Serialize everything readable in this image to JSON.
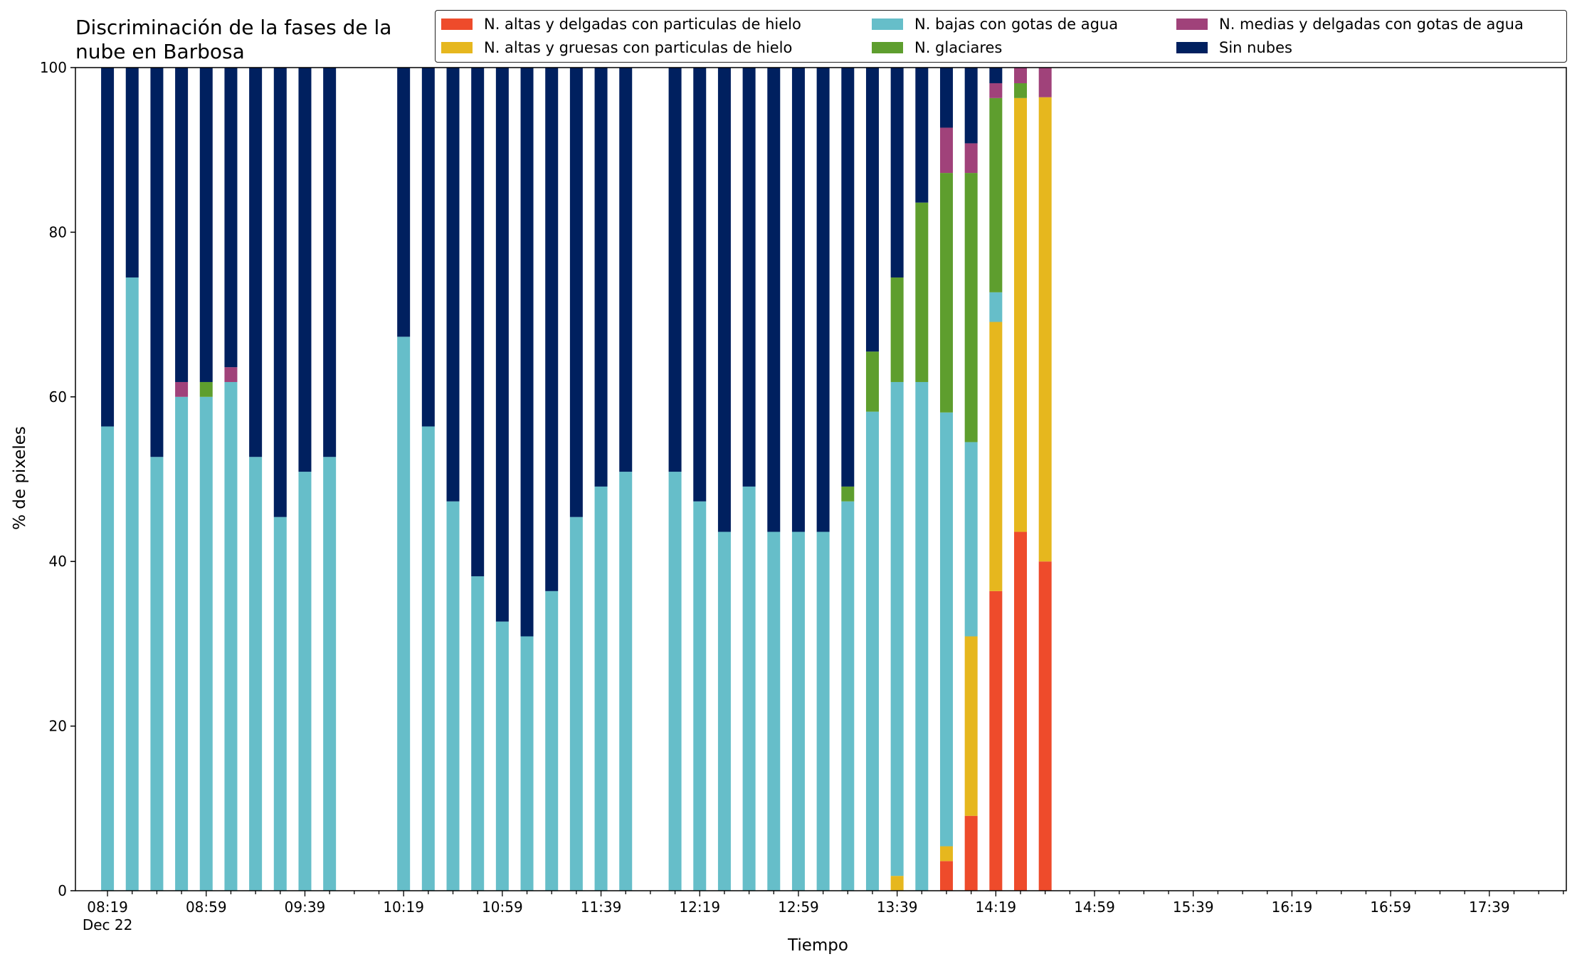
{
  "chart_data": {
    "type": "bar",
    "stacked": true,
    "title": "Discriminación de la fases de la\nnube en Barbosa",
    "xlabel": "Tiempo",
    "ylabel": "% de pixeles",
    "ylim": [
      0,
      100
    ],
    "yticks": [
      0,
      20,
      40,
      60,
      80,
      100
    ],
    "xlim_minutes": [
      8.1,
      18.17
    ],
    "x_tick_labels": [
      "08:19",
      "08:59",
      "09:39",
      "10:19",
      "10:59",
      "11:39",
      "12:19",
      "12:59",
      "13:39",
      "14:19",
      "14:59",
      "15:39",
      "16:19",
      "16:59",
      "17:39"
    ],
    "x_tick_sublabel": "Dec 22",
    "legend_placement": "top-right",
    "series": [
      {
        "name": "N. altas y delgadas con particulas de hielo",
        "color": "#ee4b2b"
      },
      {
        "name": "N. altas y gruesas con particulas de hielo",
        "color": "#e6b71e"
      },
      {
        "name": "N. bajas con gotas de agua",
        "color": "#66bec9"
      },
      {
        "name": "N. glaciares",
        "color": "#5e9e2e"
      },
      {
        "name": "N. medias y delgadas con gotas de agua",
        "color": "#a0427a"
      },
      {
        "name": "Sin nubes",
        "color": "#00205f"
      }
    ],
    "x": [
      "08:19",
      "08:29",
      "08:39",
      "08:49",
      "08:59",
      "09:09",
      "09:19",
      "09:29",
      "09:39",
      "09:49",
      "10:19",
      "10:29",
      "10:39",
      "10:49",
      "10:59",
      "11:09",
      "11:19",
      "11:29",
      "11:39",
      "11:49",
      "12:09",
      "12:19",
      "12:29",
      "12:39",
      "12:49",
      "12:59",
      "13:09",
      "13:19",
      "13:29",
      "13:39",
      "13:49",
      "13:59",
      "14:09",
      "14:19",
      "14:29",
      "14:39"
    ],
    "stacks": [
      [
        0,
        0,
        56.4,
        0,
        0,
        43.6
      ],
      [
        0,
        0,
        74.5,
        0,
        0,
        25.5
      ],
      [
        0,
        0,
        52.7,
        0,
        0,
        47.3
      ],
      [
        0,
        0,
        60.0,
        0,
        1.8,
        38.2
      ],
      [
        0,
        0,
        60.0,
        1.8,
        0,
        38.2
      ],
      [
        0,
        0,
        61.8,
        0,
        1.8,
        36.4
      ],
      [
        0,
        0,
        52.7,
        0,
        0,
        47.3
      ],
      [
        0,
        0,
        45.4,
        0,
        0,
        54.6
      ],
      [
        0,
        0,
        50.9,
        0,
        0,
        49.1
      ],
      [
        0,
        0,
        52.7,
        0,
        0,
        47.3
      ],
      [
        0,
        0,
        67.3,
        0,
        0,
        32.7
      ],
      [
        0,
        0,
        56.4,
        0,
        0,
        43.6
      ],
      [
        0,
        0,
        47.3,
        0,
        0,
        52.7
      ],
      [
        0,
        0,
        38.2,
        0,
        0,
        61.8
      ],
      [
        0,
        0,
        32.7,
        0,
        0,
        67.3
      ],
      [
        0,
        0,
        30.9,
        0,
        0,
        69.1
      ],
      [
        0,
        0,
        36.4,
        0,
        0,
        63.6
      ],
      [
        0,
        0,
        45.4,
        0,
        0,
        54.6
      ],
      [
        0,
        0,
        49.1,
        0,
        0,
        50.9
      ],
      [
        0,
        0,
        50.9,
        0,
        0,
        49.1
      ],
      [
        0,
        0,
        50.9,
        0,
        0,
        49.1
      ],
      [
        0,
        0,
        47.3,
        0,
        0,
        52.7
      ],
      [
        0,
        0,
        43.6,
        0,
        0,
        56.4
      ],
      [
        0,
        0,
        49.1,
        0,
        0,
        50.9
      ],
      [
        0,
        0,
        43.6,
        0,
        0,
        56.4
      ],
      [
        0,
        0,
        43.6,
        0,
        0,
        56.4
      ],
      [
        0,
        0,
        43.6,
        0,
        0,
        56.4
      ],
      [
        0,
        0,
        47.3,
        1.8,
        0,
        50.9
      ],
      [
        0,
        0,
        58.2,
        7.3,
        0,
        34.5
      ],
      [
        0,
        1.8,
        60.0,
        12.7,
        0,
        25.5
      ],
      [
        0,
        0,
        61.8,
        21.8,
        0,
        16.4
      ],
      [
        3.6,
        1.8,
        52.7,
        29.1,
        5.5,
        7.3
      ],
      [
        9.1,
        21.8,
        23.6,
        32.7,
        3.6,
        9.2
      ],
      [
        36.4,
        32.7,
        3.6,
        23.6,
        1.8,
        1.9
      ],
      [
        43.6,
        52.7,
        0,
        1.8,
        1.9,
        0
      ],
      [
        40.0,
        56.4,
        0,
        0,
        3.6,
        0
      ]
    ]
  }
}
